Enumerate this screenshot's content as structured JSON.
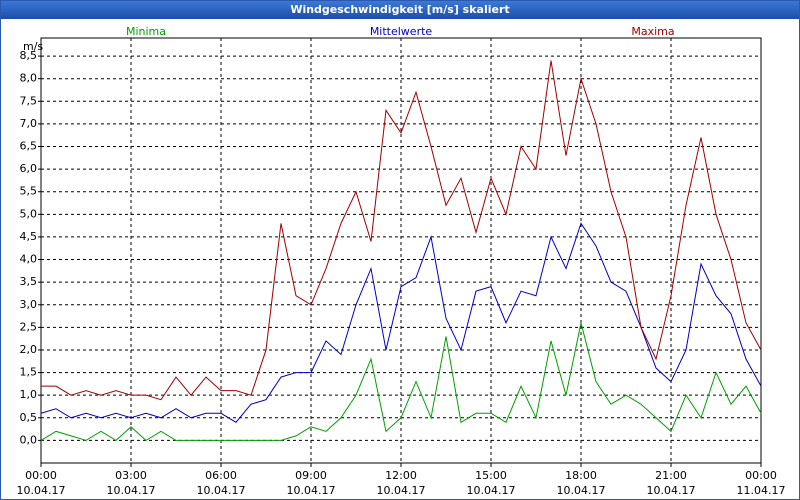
{
  "chart_data": {
    "type": "line",
    "title": "Windgeschwindigkeit [m/s] skaliert",
    "y_label": "m/s",
    "x": [
      0,
      0.5,
      1,
      1.5,
      2,
      2.5,
      3,
      3.5,
      4,
      4.5,
      5,
      5.5,
      6,
      6.5,
      7,
      7.5,
      8,
      8.5,
      9,
      9.5,
      10,
      10.5,
      11,
      11.5,
      12,
      12.5,
      13,
      13.5,
      14,
      14.5,
      15,
      15.5,
      16,
      16.5,
      17,
      17.5,
      18,
      18.5,
      19,
      19.5,
      20,
      20.5,
      21,
      21.5,
      22,
      22.5,
      23,
      23.5,
      24
    ],
    "series": [
      {
        "name": "Minima",
        "color": "#00a000",
        "values": [
          0.0,
          0.2,
          0.1,
          0.0,
          0.2,
          0.0,
          0.3,
          0.0,
          0.2,
          0.0,
          0.0,
          0.0,
          0.0,
          0.0,
          0.0,
          0.0,
          0.0,
          0.1,
          0.3,
          0.2,
          0.5,
          1.0,
          1.8,
          0.2,
          0.5,
          1.3,
          0.5,
          2.3,
          0.4,
          0.6,
          0.6,
          0.4,
          1.2,
          0.5,
          2.2,
          1.0,
          2.6,
          1.3,
          0.8,
          1.0,
          0.8,
          0.5,
          0.2,
          1.0,
          0.5,
          1.5,
          0.8,
          1.2,
          0.6
        ]
      },
      {
        "name": "Mittelwerte",
        "color": "#0000c0",
        "values": [
          0.6,
          0.7,
          0.5,
          0.6,
          0.5,
          0.6,
          0.5,
          0.6,
          0.5,
          0.7,
          0.5,
          0.6,
          0.6,
          0.4,
          0.8,
          0.9,
          1.4,
          1.5,
          1.5,
          2.2,
          1.9,
          3.0,
          3.8,
          2.0,
          3.4,
          3.6,
          4.5,
          2.7,
          2.0,
          3.3,
          3.4,
          2.6,
          3.3,
          3.2,
          4.5,
          3.8,
          4.8,
          4.3,
          3.5,
          3.3,
          2.5,
          1.6,
          1.3,
          2.0,
          3.9,
          3.2,
          2.8,
          1.8,
          1.2
        ]
      },
      {
        "name": "Maxima",
        "color": "#a00000",
        "values": [
          1.2,
          1.2,
          1.0,
          1.1,
          1.0,
          1.1,
          1.0,
          1.0,
          0.9,
          1.4,
          1.0,
          1.4,
          1.1,
          1.1,
          1.0,
          2.0,
          4.8,
          3.2,
          3.0,
          3.8,
          4.8,
          5.5,
          4.4,
          7.3,
          6.8,
          7.7,
          6.5,
          5.2,
          5.8,
          4.6,
          5.8,
          5.0,
          6.5,
          6.0,
          8.4,
          6.3,
          8.0,
          7.0,
          5.5,
          4.5,
          2.5,
          1.8,
          3.2,
          5.2,
          6.7,
          5.0,
          4.0,
          2.6,
          2.0
        ]
      }
    ],
    "xlim": [
      0,
      24
    ],
    "xticks": [
      {
        "value": 0,
        "label": "00:00"
      },
      {
        "value": 3,
        "label": "03:00"
      },
      {
        "value": 6,
        "label": "06:00"
      },
      {
        "value": 9,
        "label": "09:00"
      },
      {
        "value": 12,
        "label": "12:00"
      },
      {
        "value": 15,
        "label": "15:00"
      },
      {
        "value": 18,
        "label": "18:00"
      },
      {
        "value": 21,
        "label": "21:00"
      },
      {
        "value": 24,
        "label": "00:00"
      }
    ],
    "xtick_dates": [
      "10.04.17",
      "10.04.17",
      "10.04.17",
      "10.04.17",
      "10.04.17",
      "10.04.17",
      "10.04.17",
      "10.04.17",
      "11.04.17"
    ],
    "ylim": [
      -0.5,
      8.9
    ],
    "yticks": [
      {
        "value": 0,
        "label": "0,0"
      },
      {
        "value": 0.5,
        "label": "0,5"
      },
      {
        "value": 1,
        "label": "1,0"
      },
      {
        "value": 1.5,
        "label": "1,5"
      },
      {
        "value": 2,
        "label": "2,0"
      },
      {
        "value": 2.5,
        "label": "2,5"
      },
      {
        "value": 3,
        "label": "3,0"
      },
      {
        "value": 3.5,
        "label": "3,5"
      },
      {
        "value": 4,
        "label": "4,0"
      },
      {
        "value": 4.5,
        "label": "4,5"
      },
      {
        "value": 5,
        "label": "5,0"
      },
      {
        "value": 5.5,
        "label": "5,5"
      },
      {
        "value": 6,
        "label": "6,0"
      },
      {
        "value": 6.5,
        "label": "6,5"
      },
      {
        "value": 7,
        "label": "7,0"
      },
      {
        "value": 7.5,
        "label": "7,5"
      },
      {
        "value": 8,
        "label": "8,0"
      },
      {
        "value": 8.5,
        "label": "8,5"
      }
    ],
    "grid": true
  }
}
